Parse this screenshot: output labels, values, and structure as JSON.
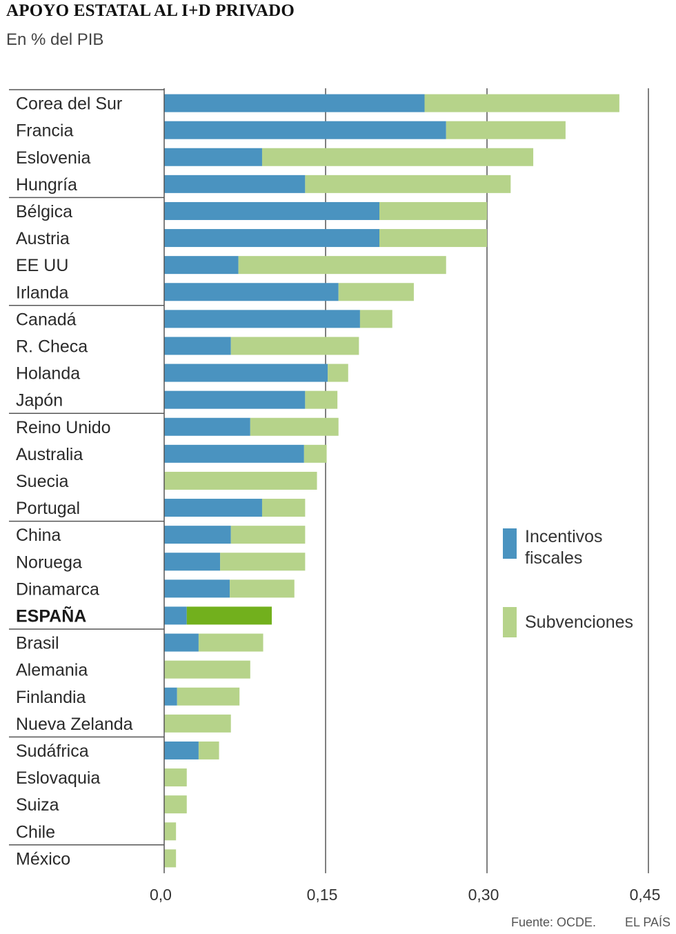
{
  "title": "APOYO ESTATAL AL I+D PRIVADO",
  "subtitle": "En % del PIB",
  "source": "Fuente: OCDE.",
  "brand": "EL PAÍS",
  "colors": {
    "fiscal": "#4a93c0",
    "subsidy": "#b6d38a",
    "highlight_subsidy": "#72b01d",
    "gridline": "#555555",
    "separator": "#555555"
  },
  "chart_data": {
    "type": "bar",
    "orientation": "horizontal",
    "stacked": true,
    "title": "APOYO ESTATAL AL I+D PRIVADO",
    "subtitle": "En % del PIB",
    "xlabel": "",
    "ylabel": "",
    "xlim": [
      0,
      0.45
    ],
    "ticks": [
      0,
      0.15,
      0.3,
      0.45
    ],
    "tick_labels": [
      "0,0",
      "0,15",
      "0,30",
      "0,45"
    ],
    "legend_position": "right-middle",
    "highlight": "ESPAÑA",
    "categories": [
      "Corea del Sur",
      "Francia",
      "Eslovenia",
      "Hungría",
      "Bélgica",
      "Austria",
      "EE UU",
      "Irlanda",
      "Canadá",
      "R. Checa",
      "Holanda",
      "Japón",
      "Reino Unido",
      "Australia",
      "Suecia",
      "Portugal",
      "China",
      "Noruega",
      "Dinamarca",
      "ESPAÑA",
      "Brasil",
      "Alemania",
      "Finlandia",
      "Nueva Zelanda",
      "Sudáfrica",
      "Eslovaquia",
      "Suiza",
      "Chile",
      "México"
    ],
    "series": [
      {
        "name": "Incentivos fiscales",
        "legend_lines": [
          "Incentivos",
          "fiscales"
        ],
        "values": [
          0.242,
          0.262,
          0.091,
          0.131,
          0.2,
          0.2,
          0.069,
          0.162,
          0.182,
          0.062,
          0.152,
          0.131,
          0.08,
          0.13,
          0.0,
          0.091,
          0.062,
          0.052,
          0.061,
          0.021,
          0.032,
          0.0,
          0.012,
          0.0,
          0.032,
          0.0,
          0.0,
          0.0,
          0.0
        ]
      },
      {
        "name": "Subvenciones",
        "legend_lines": [
          "Subvenciones"
        ],
        "values": [
          0.181,
          0.111,
          0.252,
          0.191,
          0.1,
          0.1,
          0.193,
          0.07,
          0.03,
          0.119,
          0.019,
          0.03,
          0.082,
          0.021,
          0.142,
          0.04,
          0.069,
          0.079,
          0.06,
          0.079,
          0.06,
          0.08,
          0.058,
          0.062,
          0.019,
          0.021,
          0.021,
          0.011,
          0.011
        ]
      }
    ],
    "groups_of": 4
  }
}
